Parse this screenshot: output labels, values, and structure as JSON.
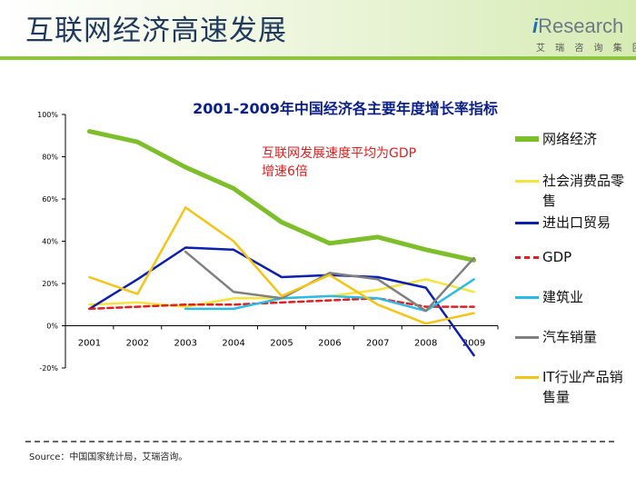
{
  "header": {
    "title": "互联网经济高速发展",
    "brand_i": "i",
    "brand_rest": "Research",
    "brand_sub": "艾 瑞 咨 询 集 团"
  },
  "annotation": {
    "line1": "互联网发展速度平均为GDP",
    "line2": "增速6倍"
  },
  "footer": {
    "source": "Source：中国国家统计局，艾瑞咨询。"
  },
  "chart_data": {
    "type": "line",
    "title": "2001-2009年中国经济各主要年度增长率指标",
    "xlabel": "",
    "ylabel": "",
    "ylim": [
      -20,
      100
    ],
    "yticks": [
      -20,
      0,
      20,
      40,
      60,
      80,
      100
    ],
    "ytick_labels": [
      "-20%",
      "0%",
      "20%",
      "40%",
      "60%",
      "80%",
      "100%"
    ],
    "categories": [
      "2001",
      "2002",
      "2003",
      "2004",
      "2005",
      "2006",
      "2007",
      "2008",
      "2009"
    ],
    "legend_position": "right",
    "series": [
      {
        "name": "网络经济",
        "color": "#7dbf2a",
        "dash": "",
        "values": [
          92,
          87,
          75,
          65,
          49,
          39,
          42,
          36,
          31
        ]
      },
      {
        "name": "社会消费品零售",
        "color": "#f7e43a",
        "dash": "",
        "values": [
          10,
          11,
          9,
          13,
          13,
          14,
          17,
          22,
          16
        ]
      },
      {
        "name": "进出口贸易",
        "color": "#0b1fb0",
        "dash": "",
        "values": [
          8,
          22,
          37,
          36,
          23,
          24,
          23,
          18,
          -14
        ]
      },
      {
        "name": "GDP",
        "color": "#e02020",
        "dash": "6,4",
        "values": [
          8,
          9,
          10,
          10,
          11,
          12,
          13,
          9,
          9
        ]
      },
      {
        "name": "建筑业",
        "color": "#2bbbe8",
        "dash": "",
        "values": [
          null,
          null,
          8,
          8,
          13,
          14,
          13,
          7,
          22
        ]
      },
      {
        "name": "汽车销量",
        "color": "#808080",
        "dash": "",
        "values": [
          null,
          null,
          35,
          16,
          13,
          25,
          22,
          7,
          32
        ]
      },
      {
        "name": "IT行业产品销售量",
        "color": "#f5c516",
        "dash": "",
        "values": [
          23,
          15,
          56,
          40,
          14,
          24,
          10,
          1,
          6
        ]
      }
    ]
  }
}
